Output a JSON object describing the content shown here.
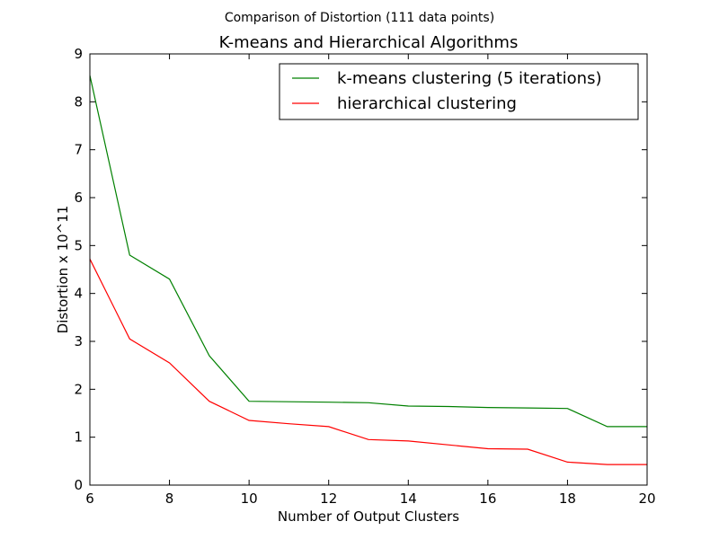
{
  "chart_data": {
    "type": "line",
    "suptitle": "Comparison of Distortion (111 data points)",
    "title": "K-means and Hierarchical Algorithms",
    "xlabel": "Number of Output Clusters",
    "ylabel": "Distortion x 10^11",
    "xlim": [
      6,
      20
    ],
    "ylim": [
      0,
      9
    ],
    "xticks": [
      6,
      8,
      10,
      12,
      14,
      16,
      18,
      20
    ],
    "yticks": [
      0,
      1,
      2,
      3,
      4,
      5,
      6,
      7,
      8,
      9
    ],
    "grid": false,
    "legend_position": "top-right",
    "x": [
      6,
      7,
      8,
      9,
      10,
      11,
      12,
      13,
      14,
      15,
      16,
      17,
      18,
      19,
      20
    ],
    "series": [
      {
        "name": "k-means clustering (5 iterations)",
        "color": "#008000",
        "values": [
          8.55,
          4.8,
          4.3,
          2.7,
          1.75,
          1.74,
          1.73,
          1.72,
          1.65,
          1.64,
          1.62,
          1.61,
          1.6,
          1.22,
          1.22
        ]
      },
      {
        "name": "hierarchical clustering",
        "color": "#ff0000",
        "values": [
          4.72,
          3.05,
          2.55,
          1.75,
          1.35,
          1.28,
          1.22,
          0.95,
          0.92,
          0.84,
          0.76,
          0.75,
          0.48,
          0.43,
          0.43
        ]
      }
    ]
  }
}
